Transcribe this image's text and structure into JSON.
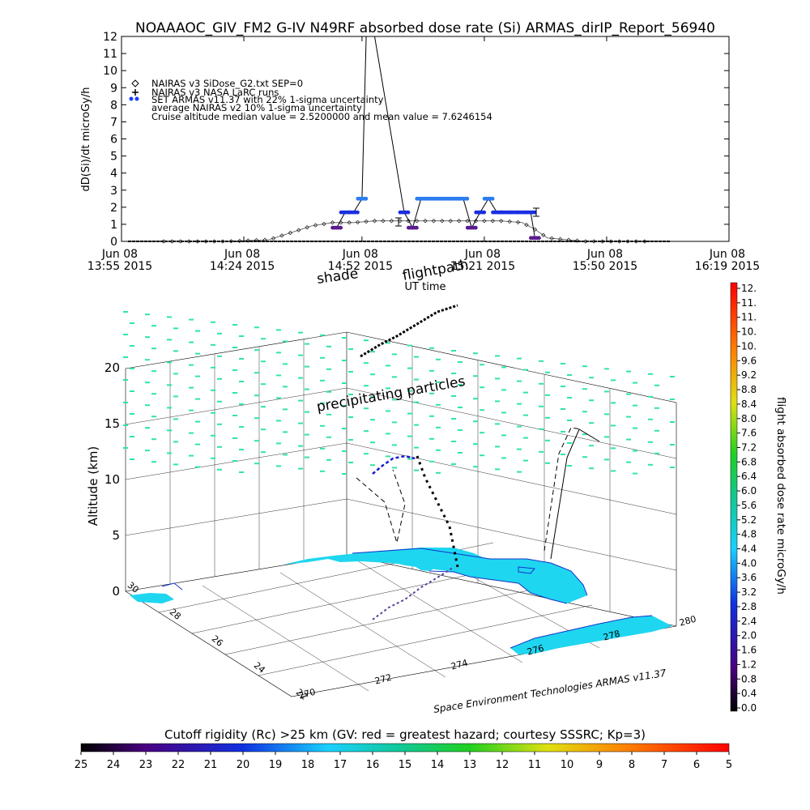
{
  "chart_data": [
    {
      "type": "line",
      "title": "NOAAAOC_GIV_FM2 G-IV    N49RF  absorbed dose rate (Si) ARMAS_dirIP_Report_56940",
      "xlabel": "UT time",
      "ylabel": "dD(Si)/dt microGy/h",
      "ylim": [
        0,
        12
      ],
      "y_ticks": [
        "0",
        "1",
        "2",
        "3",
        "4",
        "5",
        "6",
        "7",
        "8",
        "9",
        "10",
        "11",
        "12"
      ],
      "x_ticks": [
        {
          "date": "Jun 08",
          "time": "13:55 2015"
        },
        {
          "date": "Jun 08",
          "time": "14:24 2015"
        },
        {
          "date": "Jun 08",
          "time": "14:52 2015"
        },
        {
          "date": "Jun 08",
          "time": "15:21 2015"
        },
        {
          "date": "Jun 08",
          "time": "15:50 2015"
        },
        {
          "date": "Jun 08",
          "time": "16:19 2015"
        }
      ],
      "x_tick_minutes": [
        "13:55",
        "14:24",
        "14:52",
        "15:21",
        "15:50",
        "16:19"
      ],
      "xlim": [
        "13:55",
        "16:19"
      ],
      "legend": [
        "NAIRAS v3 SiDose_G2.txt SEP=0",
        "NAIRAS v3 NASA LaRC runs",
        "SET ARMAS v11.37 with 22% 1-sigma uncertainty",
        "average NAIRAS v2 10% 1-sigma uncertainty",
        "Cruise altitude median value = 2.5200000 and mean value = 7.6246154"
      ],
      "legend_placement": "top-left",
      "series": [
        {
          "name": "NAIRAS v3 SiDose_G2.txt SEP=0",
          "x": [
            "14:05",
            "14:20",
            "14:30",
            "14:35",
            "14:40",
            "14:45",
            "14:50",
            "14:55",
            "15:00",
            "15:05",
            "15:10",
            "15:15",
            "15:20",
            "15:25",
            "15:30",
            "15:33",
            "15:36",
            "15:45",
            "15:55",
            "16:00"
          ],
          "y": [
            0,
            0,
            0.1,
            0.5,
            0.9,
            1.1,
            1.1,
            1.2,
            1.2,
            1.2,
            1.2,
            1.2,
            1.2,
            1.2,
            1.1,
            0.7,
            0.2,
            0,
            0,
            0
          ]
        },
        {
          "name": "SET ARMAS v11.37 with 22% 1-sigma uncertainty",
          "x": [
            "14:46",
            "14:48",
            "14:50",
            "14:52",
            "14:53",
            "14:55",
            "15:02",
            "15:04",
            "15:06",
            "15:08",
            "15:10",
            "15:12",
            "15:14",
            "15:16",
            "15:18",
            "15:20",
            "15:22",
            "15:24",
            "15:26",
            "15:28",
            "15:30",
            "15:32",
            "15:33"
          ],
          "y": [
            0.8,
            1.7,
            1.7,
            2.5,
            12,
            12,
            1.7,
            0.8,
            2.5,
            2.5,
            2.5,
            2.5,
            2.5,
            2.5,
            0.8,
            1.7,
            2.5,
            1.7,
            1.7,
            1.7,
            1.7,
            1.7,
            0.2
          ]
        }
      ]
    },
    {
      "type": "scatter",
      "title": "",
      "zlabel": "Altitude (km)",
      "z_ticks": [
        "0",
        "5",
        "10",
        "15",
        "20"
      ],
      "lat_ticks": [
        "22",
        "24",
        "26",
        "28",
        "30"
      ],
      "lon_ticks": [
        "270",
        "272",
        "274",
        "276",
        "278",
        "280"
      ],
      "annotations": {
        "shade": "shade",
        "flightpath": "flightpath",
        "precip": "precipitating particles",
        "credit": "Space Environment Technologies ARMAS v11.37"
      },
      "colorbar": {
        "label": "flight absorbed dose rate microGy/h",
        "ticks": [
          "12.",
          "11.",
          "11.",
          "10.",
          "10.",
          "9.6",
          "9.2",
          "8.8",
          "8.4",
          "8.0",
          "7.6",
          "7.2",
          "6.8",
          "6.4",
          "6.0",
          "5.6",
          "5.2",
          "4.8",
          "4.4",
          "4.0",
          "3.6",
          "3.2",
          "2.8",
          "2.4",
          "2.0",
          "1.6",
          "1.2",
          "0.8",
          "0.4",
          "0.0"
        ],
        "range": [
          0,
          12
        ]
      },
      "particle_color": "#2ee6a0",
      "land_color": "#1fd6f0",
      "coast_color": "#1434c8"
    },
    {
      "type": "heatmap",
      "title": "Cutoff rigidity (Rc) >25 km (GV: red = greatest hazard; courtesy SSSRC; Kp=3)",
      "ticks": [
        "25",
        "24",
        "23",
        "22",
        "21",
        "20",
        "19",
        "18",
        "17",
        "16",
        "15",
        "14",
        "13",
        "12",
        "11",
        "10",
        "9",
        "8",
        "7",
        "6",
        "5"
      ],
      "range": [
        25,
        5
      ]
    }
  ]
}
